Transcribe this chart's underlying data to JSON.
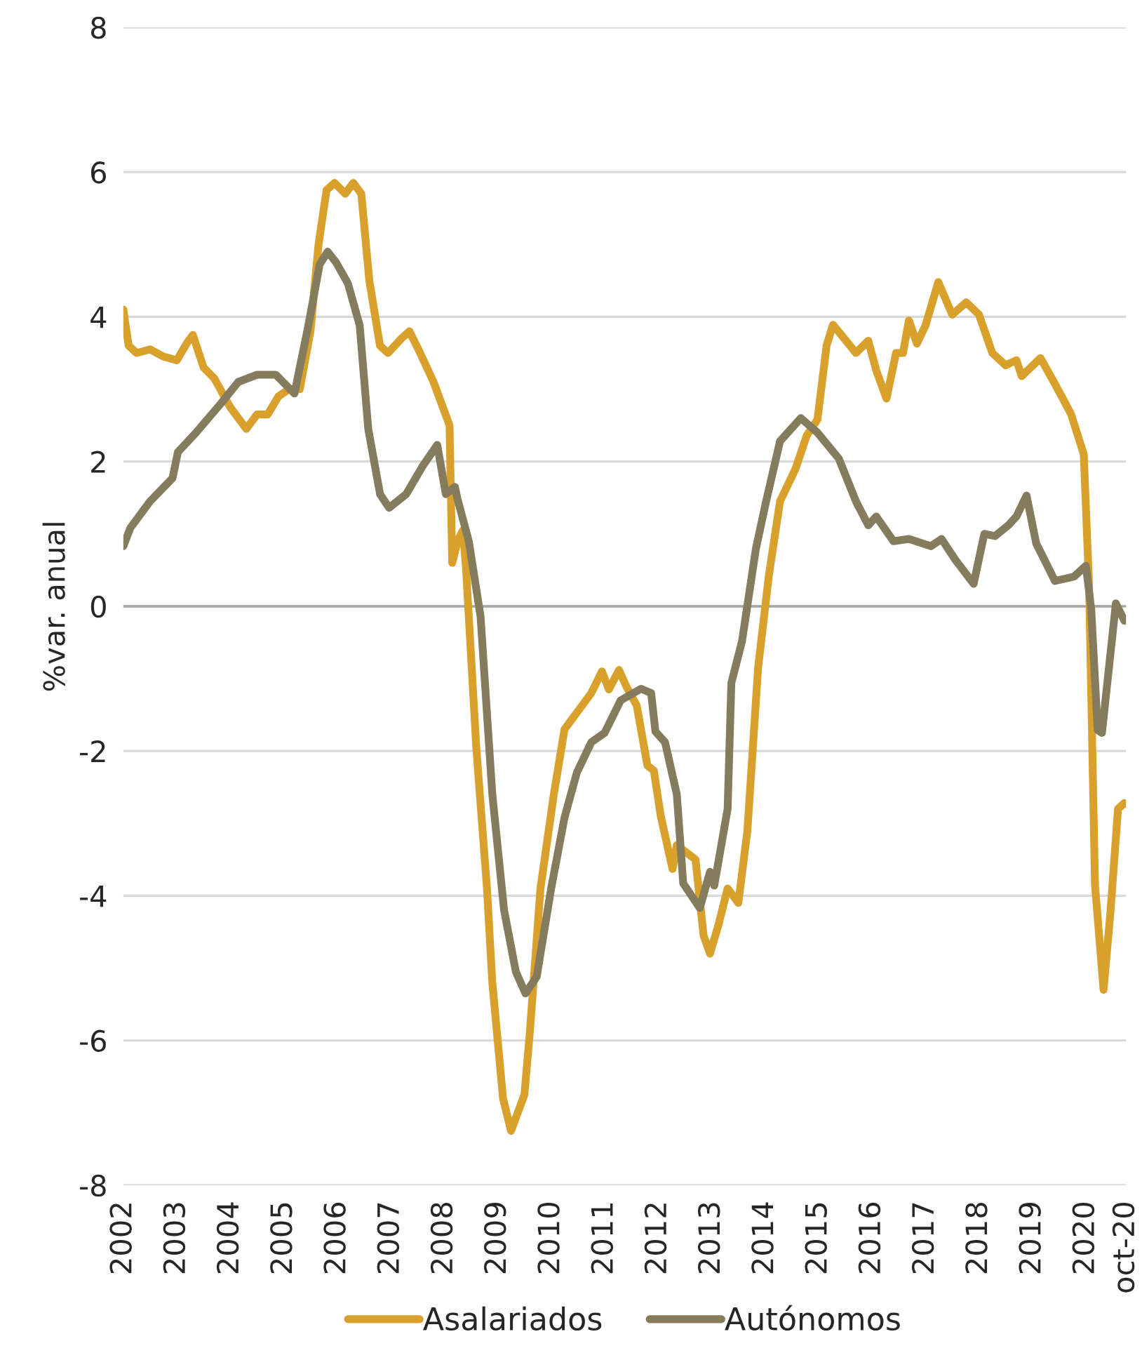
{
  "chart_data": {
    "type": "line",
    "ylabel": "%var. anual",
    "xlim": [
      2002,
      2020.75
    ],
    "xticks": [
      {
        "value": 2002,
        "label": "2002"
      },
      {
        "value": 2003,
        "label": "2003"
      },
      {
        "value": 2004,
        "label": "2004"
      },
      {
        "value": 2005,
        "label": "2005"
      },
      {
        "value": 2006,
        "label": "2006"
      },
      {
        "value": 2007,
        "label": "2007"
      },
      {
        "value": 2008,
        "label": "2008"
      },
      {
        "value": 2009,
        "label": "2009"
      },
      {
        "value": 2010,
        "label": "2010"
      },
      {
        "value": 2011,
        "label": "2011"
      },
      {
        "value": 2012,
        "label": "2012"
      },
      {
        "value": 2013,
        "label": "2013"
      },
      {
        "value": 2014,
        "label": "2014"
      },
      {
        "value": 2015,
        "label": "2015"
      },
      {
        "value": 2016,
        "label": "2016"
      },
      {
        "value": 2017,
        "label": "2017"
      },
      {
        "value": 2018,
        "label": "2018"
      },
      {
        "value": 2019,
        "label": "2019"
      },
      {
        "value": 2020,
        "label": "2020"
      },
      {
        "value": 2020.75,
        "label": "oct-20"
      }
    ],
    "ylim": [
      -8,
      8
    ],
    "yticks": [
      -8,
      -6,
      -4,
      -2,
      0,
      2,
      4,
      6,
      8
    ],
    "grid": "y",
    "legend": "bottom",
    "line_style": "solid",
    "ref_lines": [
      {
        "axis": "y",
        "value": 0,
        "color": "#a6a6a6"
      }
    ],
    "series": [
      {
        "name": "Asalariados",
        "color": "#d9a02b",
        "x": [
          2002.0,
          2002.1,
          2002.25,
          2002.5,
          2002.75,
          2003.0,
          2003.2,
          2003.3,
          2003.5,
          2003.7,
          2004.0,
          2004.15,
          2004.3,
          2004.5,
          2004.7,
          2004.9,
          2005.1,
          2005.3,
          2005.5,
          2005.65,
          2005.8,
          2005.95,
          2006.15,
          2006.3,
          2006.45,
          2006.6,
          2006.8,
          2006.95,
          2007.2,
          2007.35,
          2007.55,
          2007.8,
          2008.0,
          2008.1,
          2008.15,
          2008.25,
          2008.35,
          2008.41,
          2008.6,
          2008.8,
          2008.9,
          2009.1,
          2009.25,
          2009.5,
          2009.6,
          2009.8,
          2010.05,
          2010.25,
          2010.5,
          2010.75,
          2010.95,
          2011.08,
          2011.27,
          2011.4,
          2011.6,
          2011.8,
          2011.92,
          2012.05,
          2012.27,
          2012.35,
          2012.7,
          2012.85,
          2012.97,
          2013.13,
          2013.3,
          2013.5,
          2013.67,
          2013.87,
          2014.07,
          2014.28,
          2014.57,
          2014.78,
          2014.98,
          2015.15,
          2015.27,
          2015.48,
          2015.7,
          2015.93,
          2016.08,
          2016.27,
          2016.45,
          2016.58,
          2016.69,
          2016.84,
          2017.0,
          2017.24,
          2017.5,
          2017.76,
          2018.0,
          2018.25,
          2018.5,
          2018.7,
          2018.8,
          2019.15,
          2019.4,
          2019.72,
          2019.96,
          2020.06,
          2020.17,
          2020.33,
          2020.46,
          2020.6,
          2020.72
        ],
        "values": [
          4.1,
          3.6,
          3.5,
          3.55,
          3.45,
          3.4,
          3.65,
          3.75,
          3.3,
          3.15,
          2.75,
          2.6,
          2.45,
          2.65,
          2.65,
          2.9,
          3.0,
          3.0,
          3.8,
          5.0,
          5.75,
          5.85,
          5.7,
          5.85,
          5.7,
          4.5,
          3.6,
          3.5,
          3.7,
          3.8,
          3.5,
          3.1,
          2.7,
          2.5,
          0.6,
          0.9,
          1.05,
          0.5,
          -1.95,
          -3.9,
          -5.2,
          -6.8,
          -7.25,
          -6.75,
          -5.9,
          -3.9,
          -2.6,
          -1.7,
          -1.45,
          -1.2,
          -0.9,
          -1.15,
          -0.88,
          -1.1,
          -1.37,
          -2.2,
          -2.27,
          -2.9,
          -3.63,
          -3.3,
          -3.5,
          -4.55,
          -4.8,
          -4.4,
          -3.9,
          -4.1,
          -3.1,
          -0.85,
          0.42,
          1.45,
          1.9,
          2.36,
          2.58,
          3.6,
          3.89,
          3.7,
          3.5,
          3.67,
          3.26,
          2.87,
          3.5,
          3.5,
          3.95,
          3.63,
          3.88,
          4.48,
          4.03,
          4.2,
          4.03,
          3.5,
          3.33,
          3.4,
          3.18,
          3.43,
          3.1,
          2.66,
          2.1,
          0.27,
          -3.85,
          -5.3,
          -4.22,
          -2.8,
          -2.72
        ]
      },
      {
        "name": "Autónomos",
        "color": "#847c5c",
        "x": [
          2002.0,
          2002.13,
          2002.5,
          2002.92,
          2003.02,
          2003.36,
          2003.8,
          2004.15,
          2004.5,
          2004.85,
          2005.2,
          2005.46,
          2005.67,
          2005.82,
          2005.98,
          2006.2,
          2006.42,
          2006.58,
          2006.8,
          2006.97,
          2007.29,
          2007.6,
          2007.87,
          2008.03,
          2008.2,
          2008.25,
          2008.46,
          2008.68,
          2008.9,
          2009.12,
          2009.34,
          2009.52,
          2009.73,
          2010.0,
          2010.25,
          2010.48,
          2010.75,
          2011.0,
          2011.3,
          2011.68,
          2011.87,
          2011.95,
          2012.13,
          2012.35,
          2012.47,
          2012.78,
          2012.97,
          2013.05,
          2013.3,
          2013.37,
          2013.57,
          2013.83,
          2014.02,
          2014.28,
          2014.67,
          2014.98,
          2015.38,
          2015.7,
          2015.93,
          2016.08,
          2016.4,
          2016.69,
          2017.1,
          2017.3,
          2017.56,
          2017.9,
          2018.1,
          2018.3,
          2018.55,
          2018.7,
          2018.89,
          2019.07,
          2019.42,
          2019.78,
          2020.0,
          2020.1,
          2020.22,
          2020.3,
          2020.56,
          2020.72
        ],
        "values": [
          0.83,
          1.08,
          1.45,
          1.77,
          2.13,
          2.4,
          2.78,
          3.1,
          3.2,
          3.2,
          2.94,
          3.88,
          4.72,
          4.9,
          4.75,
          4.46,
          3.88,
          2.45,
          1.55,
          1.36,
          1.55,
          1.94,
          2.23,
          1.55,
          1.65,
          1.48,
          0.9,
          -0.14,
          -2.6,
          -4.2,
          -5.05,
          -5.35,
          -5.12,
          -3.9,
          -2.92,
          -2.3,
          -1.88,
          -1.75,
          -1.3,
          -1.14,
          -1.2,
          -1.73,
          -1.88,
          -2.6,
          -3.83,
          -4.17,
          -3.67,
          -3.86,
          -2.8,
          -1.06,
          -0.48,
          0.8,
          1.45,
          2.28,
          2.6,
          2.4,
          2.04,
          1.45,
          1.12,
          1.24,
          0.9,
          0.93,
          0.83,
          0.93,
          0.64,
          0.31,
          1.0,
          0.97,
          1.12,
          1.24,
          1.53,
          0.87,
          0.35,
          0.41,
          0.56,
          -0.04,
          -1.71,
          -1.75,
          0.04,
          -0.2
        ]
      }
    ]
  }
}
